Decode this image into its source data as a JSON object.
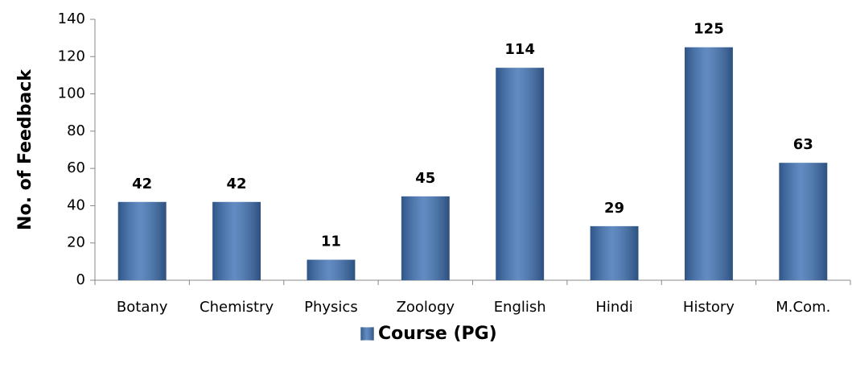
{
  "chart_data": {
    "type": "bar",
    "y_label": "No. of Feedback",
    "categories": [
      "Botany",
      "Chemistry",
      "Physics",
      "Zoology",
      "English",
      "Hindi",
      "History",
      "M.Com."
    ],
    "series": [
      {
        "name": "Course (PG)",
        "color": "#3f72b5",
        "values": [
          42,
          42,
          11,
          45,
          114,
          29,
          125,
          63
        ]
      }
    ],
    "ylim": [
      0,
      140
    ],
    "yticks": [
      0,
      20,
      40,
      60,
      80,
      100,
      120,
      140
    ],
    "data_labels": true,
    "legend": "bottom"
  }
}
